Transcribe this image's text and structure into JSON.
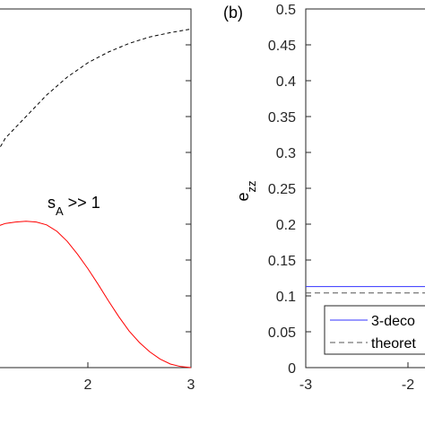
{
  "chart_data": [
    {
      "type": "line",
      "panel": "a",
      "xlim": [
        0,
        3
      ],
      "ylim": [
        0,
        0.5
      ],
      "x_ticks": [
        "2",
        "3"
      ],
      "annotation": "s_A >> 1",
      "annotation_base": "s",
      "annotation_sub": "A",
      "annotation_rest": " >> 1",
      "series": [
        {
          "style": "dashed",
          "color": "#000000",
          "x": [
            1.0,
            1.2,
            1.4,
            1.6,
            1.8,
            2.0,
            2.2,
            2.4,
            2.6,
            2.8,
            3.0
          ],
          "y": [
            0.27,
            0.32,
            0.35,
            0.38,
            0.405,
            0.425,
            0.44,
            0.452,
            0.461,
            0.467,
            0.472
          ]
        },
        {
          "style": "solid",
          "color": "#ff0000",
          "x": [
            1.0,
            1.1,
            1.2,
            1.3,
            1.4,
            1.5,
            1.6,
            1.7,
            1.8,
            1.9,
            2.0,
            2.1,
            2.2,
            2.3,
            2.4,
            2.5,
            2.6,
            2.7,
            2.8,
            2.9,
            3.0
          ],
          "y": [
            0.189,
            0.196,
            0.201,
            0.203,
            0.204,
            0.203,
            0.199,
            0.19,
            0.176,
            0.158,
            0.138,
            0.116,
            0.093,
            0.071,
            0.051,
            0.035,
            0.022,
            0.012,
            0.005,
            0.0015,
            0.0
          ]
        }
      ]
    },
    {
      "type": "line",
      "panel": "b",
      "panel_label": "(b)",
      "ylabel": "e_zz",
      "ylabel_base": "e",
      "ylabel_sub": "zz",
      "ylim": [
        0,
        0.5
      ],
      "xlim": [
        -3,
        3
      ],
      "y_ticks": [
        "0",
        "0.05",
        "0.1",
        "0.15",
        "0.2",
        "0.25",
        "0.3",
        "0.35",
        "0.4",
        "0.45",
        "0.5"
      ],
      "x_ticks": [
        "-3",
        "-2"
      ],
      "legend_placement": "bottom-left",
      "series": [
        {
          "name": "3-deco",
          "style": "solid",
          "color": "#3333ff",
          "x": [
            -3,
            3
          ],
          "y": [
            0.113,
            0.113
          ]
        },
        {
          "name": "theoret",
          "style": "dashed",
          "color": "#555555",
          "x": [
            -3,
            3
          ],
          "y": [
            0.104,
            0.104
          ]
        }
      ]
    }
  ]
}
